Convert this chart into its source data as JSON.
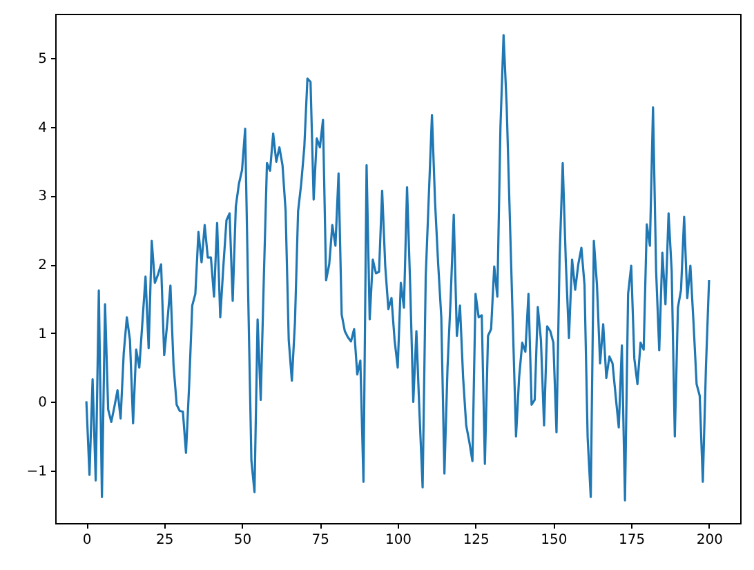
{
  "chart_data": {
    "type": "line",
    "x": [
      0,
      1,
      2,
      3,
      4,
      5,
      6,
      7,
      8,
      9,
      10,
      11,
      12,
      13,
      14,
      15,
      16,
      17,
      18,
      19,
      20,
      21,
      22,
      23,
      24,
      25,
      26,
      27,
      28,
      29,
      30,
      31,
      32,
      33,
      34,
      35,
      36,
      37,
      38,
      39,
      40,
      41,
      42,
      43,
      44,
      45,
      46,
      47,
      48,
      49,
      50,
      51,
      52,
      53,
      54,
      55,
      56,
      57,
      58,
      59,
      60,
      61,
      62,
      63,
      64,
      65,
      66,
      67,
      68,
      69,
      70,
      71,
      72,
      73,
      74,
      75,
      76,
      77,
      78,
      79,
      80,
      81,
      82,
      83,
      84,
      85,
      86,
      87,
      88,
      89,
      90,
      91,
      92,
      93,
      94,
      95,
      96,
      97,
      98,
      99,
      100,
      101,
      102,
      103,
      104,
      105,
      106,
      107,
      108,
      109,
      110,
      111,
      112,
      113,
      114,
      115,
      116,
      117,
      118,
      119,
      120,
      121,
      122,
      123,
      124,
      125,
      126,
      127,
      128,
      129,
      130,
      131,
      132,
      133,
      134,
      135,
      136,
      137,
      138,
      139,
      140,
      141,
      142,
      143,
      144,
      145,
      146,
      147,
      148,
      149,
      150,
      151,
      152,
      153,
      154,
      155,
      156,
      157,
      158,
      159,
      160,
      161,
      162,
      163,
      164,
      165,
      166,
      167,
      168,
      169,
      170,
      171,
      172,
      173,
      174,
      175,
      176,
      177,
      178,
      179,
      180,
      181,
      182,
      183,
      184,
      185,
      186,
      187,
      188,
      189,
      190,
      191,
      192,
      193,
      194,
      195,
      196,
      197,
      198,
      199,
      200
    ],
    "series": [
      {
        "color": "#1f77b4",
        "values": [
          0.01,
          -1.06,
          0.33,
          -1.14,
          1.62,
          -1.38,
          1.42,
          -0.11,
          -0.29,
          -0.07,
          0.17,
          -0.24,
          0.71,
          1.23,
          0.9,
          -0.31,
          0.76,
          0.5,
          1.16,
          1.82,
          0.78,
          2.34,
          1.73,
          1.85,
          2.0,
          0.68,
          1.16,
          1.69,
          0.53,
          -0.04,
          -0.13,
          -0.14,
          -0.74,
          0.23,
          1.4,
          1.57,
          2.47,
          2.03,
          2.57,
          2.1,
          2.1,
          1.53,
          2.6,
          1.23,
          1.97,
          2.64,
          2.74,
          1.47,
          2.84,
          3.17,
          3.37,
          3.97,
          1.5,
          -0.85,
          -1.31,
          1.2,
          0.03,
          1.8,
          3.47,
          3.36,
          3.9,
          3.49,
          3.7,
          3.44,
          2.77,
          0.9,
          0.31,
          1.16,
          2.77,
          3.17,
          3.7,
          4.7,
          4.65,
          2.94,
          3.83,
          3.7,
          4.1,
          1.77,
          2.0,
          2.57,
          2.27,
          3.32,
          1.27,
          1.03,
          0.94,
          0.88,
          1.06,
          0.4,
          0.6,
          -1.16,
          3.44,
          1.2,
          2.07,
          1.87,
          1.89,
          3.07,
          1.97,
          1.35,
          1.51,
          0.9,
          0.5,
          1.73,
          1.37,
          3.12,
          1.7,
          0.0,
          1.03,
          -0.17,
          -1.24,
          1.83,
          3.0,
          4.17,
          2.9,
          2.0,
          1.23,
          -1.04,
          0.5,
          1.5,
          2.72,
          0.96,
          1.4,
          0.36,
          -0.34,
          -0.58,
          -0.86,
          1.57,
          1.23,
          1.26,
          -0.9,
          0.96,
          1.06,
          1.97,
          1.53,
          4.0,
          5.33,
          4.3,
          2.7,
          1.1,
          -0.5,
          0.36,
          0.86,
          0.73,
          1.57,
          -0.04,
          0.03,
          1.38,
          0.9,
          -0.34,
          1.1,
          1.03,
          0.86,
          -0.44,
          2.1,
          3.47,
          2.03,
          0.93,
          2.07,
          1.63,
          2.0,
          2.24,
          1.7,
          -0.51,
          -1.38,
          2.34,
          1.7,
          0.56,
          1.13,
          0.35,
          0.66,
          0.56,
          0.09,
          -0.37,
          0.82,
          -1.43,
          1.57,
          1.98,
          0.63,
          0.26,
          0.86,
          0.76,
          2.58,
          2.27,
          4.28,
          1.9,
          0.75,
          2.17,
          1.42,
          2.74,
          1.9,
          -0.5,
          1.37,
          1.63,
          2.69,
          1.51,
          1.98,
          1.16,
          0.26,
          0.09,
          -1.16,
          0.5,
          1.77
        ]
      }
    ],
    "xlim": [
      -10,
      210
    ],
    "ylim": [
      -1.76,
      5.64
    ],
    "xticks": [
      0,
      25,
      50,
      75,
      100,
      125,
      150,
      175,
      200
    ],
    "yticks": [
      -1,
      0,
      1,
      2,
      3,
      4,
      5
    ],
    "grid": false,
    "line_style": "solid",
    "marker": "none"
  }
}
